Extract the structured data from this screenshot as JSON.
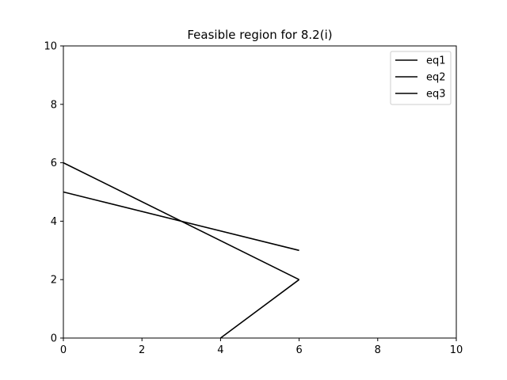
{
  "chart_data": {
    "type": "line",
    "title": "Feasible region for 8.2(i)",
    "xlabel": "",
    "ylabel": "",
    "xlim": [
      0,
      10
    ],
    "ylim": [
      0,
      10
    ],
    "xticks": [
      "0",
      "2",
      "4",
      "6",
      "8",
      "10"
    ],
    "yticks": [
      "0",
      "2",
      "4",
      "6",
      "8",
      "10"
    ],
    "grid": false,
    "legend_position": "top-right",
    "series": [
      {
        "name": "eq1",
        "color": "#000000",
        "x": [
          0,
          6
        ],
        "y": [
          6,
          2
        ]
      },
      {
        "name": "eq2",
        "color": "#000000",
        "x": [
          0,
          6
        ],
        "y": [
          5,
          3
        ]
      },
      {
        "name": "eq3",
        "color": "#000000",
        "x": [
          4,
          6
        ],
        "y": [
          0,
          2
        ]
      }
    ]
  }
}
